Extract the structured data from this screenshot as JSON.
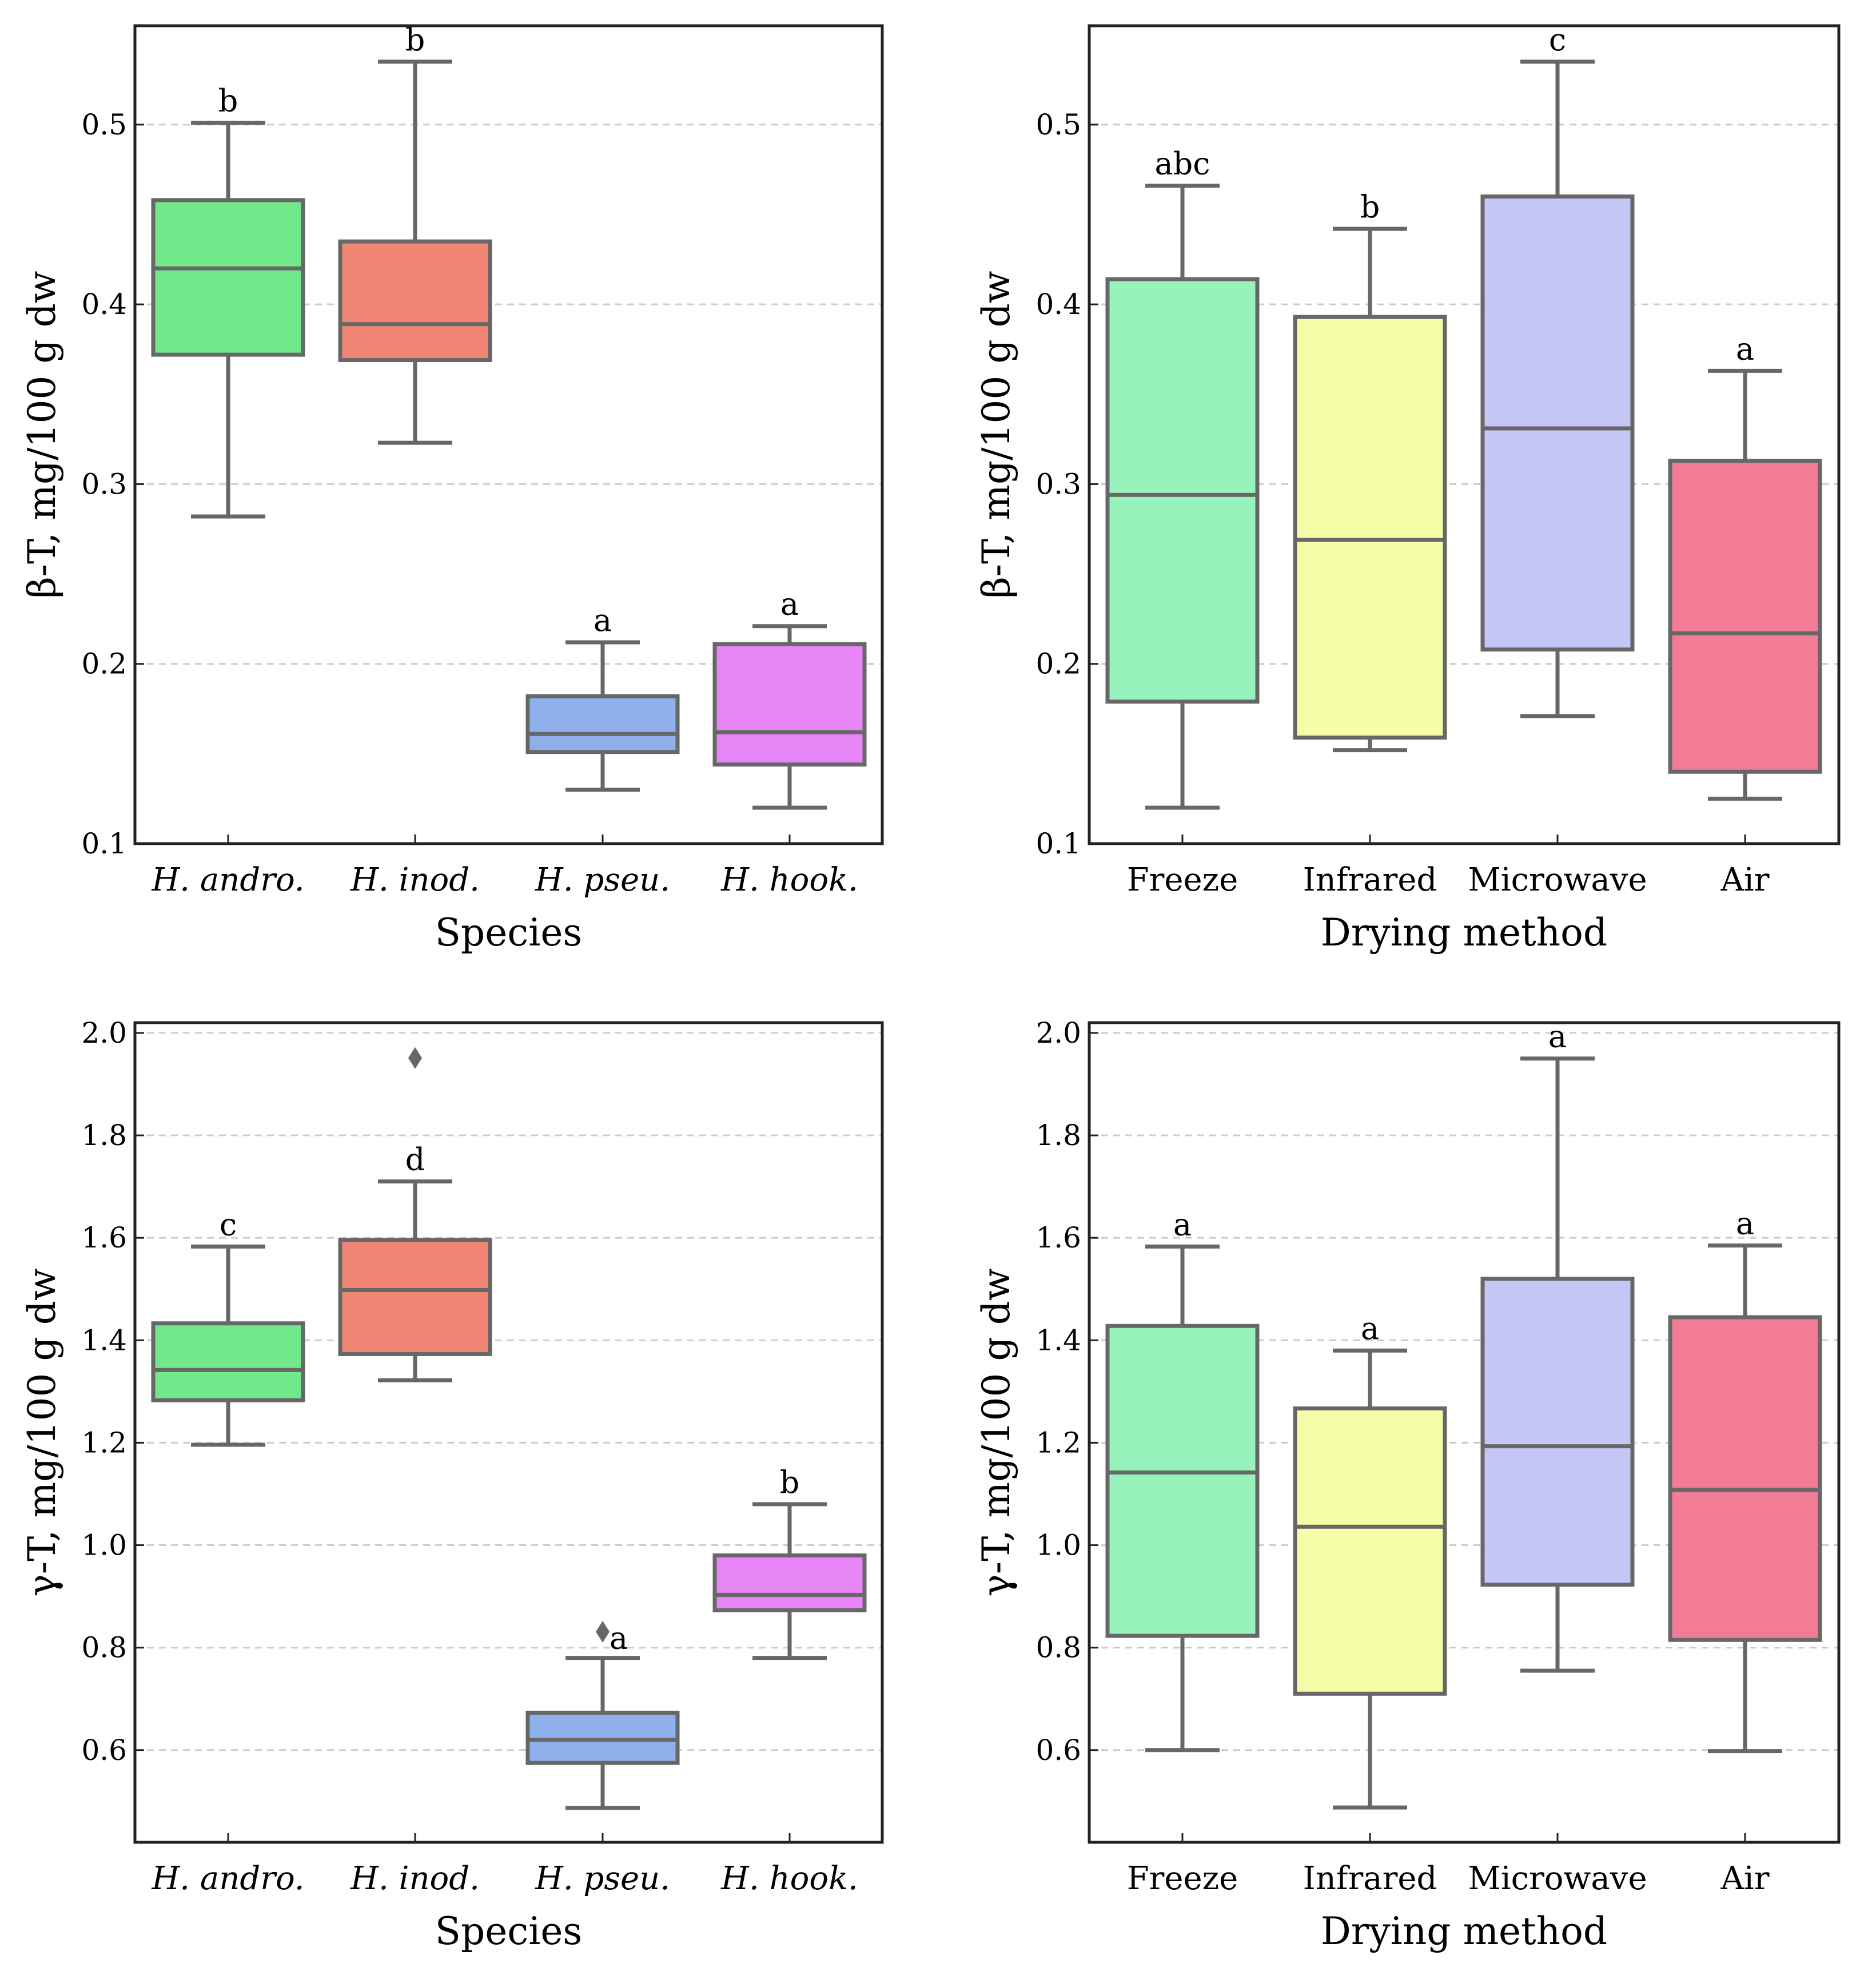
{
  "colors": {
    "box_edge": "#676767",
    "grid": "#cccccc",
    "species": [
      "#6fe98a",
      "#f08673",
      "#8eb0ea",
      "#e785f7"
    ],
    "drying": [
      "#98f2bb",
      "#f4fda8",
      "#c4c6f5",
      "#f27b95"
    ]
  },
  "chart_data": [
    {
      "type": "box",
      "xlabel": "Species",
      "ylabel": "β-T, mg/100 g dw",
      "ylim": [
        0.1,
        0.555
      ],
      "yticks": [
        "0.1",
        "0.2",
        "0.3",
        "0.4",
        "0.5"
      ],
      "grid": true,
      "italic_categories": true,
      "categories": [
        "H. andro.",
        "H. inod.",
        "H. pseu.",
        "H. hook."
      ],
      "boxes": [
        {
          "min": 0.282,
          "q1": 0.372,
          "median": 0.42,
          "q3": 0.458,
          "max": 0.501,
          "label": "b"
        },
        {
          "min": 0.323,
          "q1": 0.369,
          "median": 0.389,
          "q3": 0.435,
          "max": 0.535,
          "label": "b"
        },
        {
          "min": 0.13,
          "q1": 0.151,
          "median": 0.161,
          "q3": 0.182,
          "max": 0.212,
          "label": "a"
        },
        {
          "min": 0.12,
          "q1": 0.144,
          "median": 0.162,
          "q3": 0.211,
          "max": 0.221,
          "label": "a"
        }
      ]
    },
    {
      "type": "box",
      "xlabel": "Drying method",
      "ylabel": "β-T, mg/100 g dw",
      "ylim": [
        0.1,
        0.555
      ],
      "yticks": [
        "0.1",
        "0.2",
        "0.3",
        "0.4",
        "0.5"
      ],
      "grid": true,
      "italic_categories": false,
      "categories": [
        "Freeze",
        "Infrared",
        "Microwave",
        "Air"
      ],
      "boxes": [
        {
          "min": 0.12,
          "q1": 0.179,
          "median": 0.294,
          "q3": 0.414,
          "max": 0.466,
          "label": "abc"
        },
        {
          "min": 0.152,
          "q1": 0.159,
          "median": 0.269,
          "q3": 0.393,
          "max": 0.442,
          "label": "b"
        },
        {
          "min": 0.171,
          "q1": 0.208,
          "median": 0.331,
          "q3": 0.46,
          "max": 0.535,
          "label": "c"
        },
        {
          "min": 0.125,
          "q1": 0.14,
          "median": 0.217,
          "q3": 0.313,
          "max": 0.363,
          "label": "a"
        }
      ]
    },
    {
      "type": "box",
      "xlabel": "Species",
      "ylabel": "γ-T, mg/100 g dw",
      "ylim": [
        0.42,
        2.02
      ],
      "yticks": [
        "0.6",
        "0.8",
        "1.0",
        "1.2",
        "1.4",
        "1.6",
        "1.8",
        "2.0"
      ],
      "grid": true,
      "italic_categories": true,
      "categories": [
        "H. andro.",
        "H. inod.",
        "H. pseu.",
        "H. hook."
      ],
      "boxes": [
        {
          "min": 1.196,
          "q1": 1.283,
          "median": 1.342,
          "q3": 1.433,
          "max": 1.583,
          "label": "c"
        },
        {
          "min": 1.322,
          "q1": 1.373,
          "median": 1.498,
          "q3": 1.596,
          "max": 1.71,
          "label": "d",
          "outliers": [
            1.951
          ]
        },
        {
          "min": 0.487,
          "q1": 0.575,
          "median": 0.62,
          "q3": 0.673,
          "max": 0.78,
          "label": "a",
          "outliers": [
            0.831
          ]
        },
        {
          "min": 0.78,
          "q1": 0.873,
          "median": 0.903,
          "q3": 0.98,
          "max": 1.08,
          "label": "b"
        }
      ]
    },
    {
      "type": "box",
      "xlabel": "Drying method",
      "ylabel": "γ-T, mg/100 g dw",
      "ylim": [
        0.42,
        2.02
      ],
      "yticks": [
        "0.6",
        "0.8",
        "1.0",
        "1.2",
        "1.4",
        "1.6",
        "1.8",
        "2.0"
      ],
      "grid": true,
      "italic_categories": false,
      "categories": [
        "Freeze",
        "Infrared",
        "Microwave",
        "Air"
      ],
      "boxes": [
        {
          "min": 0.6,
          "q1": 0.823,
          "median": 1.142,
          "q3": 1.428,
          "max": 1.583,
          "label": "a"
        },
        {
          "min": 0.488,
          "q1": 0.71,
          "median": 1.036,
          "q3": 1.267,
          "max": 1.38,
          "label": "a"
        },
        {
          "min": 0.755,
          "q1": 0.923,
          "median": 1.193,
          "q3": 1.52,
          "max": 1.95,
          "label": "a"
        },
        {
          "min": 0.598,
          "q1": 0.815,
          "median": 1.108,
          "q3": 1.445,
          "max": 1.585,
          "label": "a"
        }
      ]
    }
  ]
}
